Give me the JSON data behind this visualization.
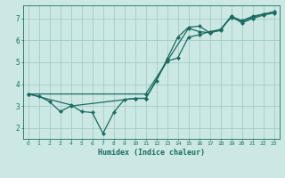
{
  "xlabel": "Humidex (Indice chaleur)",
  "bg_color": "#cce8e4",
  "grid_color": "#aacfcc",
  "line_color": "#1a6b60",
  "xlim": [
    -0.5,
    23.5
  ],
  "ylim": [
    1.5,
    7.6
  ],
  "xticks": [
    0,
    1,
    2,
    3,
    4,
    5,
    6,
    7,
    8,
    9,
    10,
    11,
    12,
    13,
    14,
    15,
    16,
    17,
    18,
    19,
    20,
    21,
    22,
    23
  ],
  "yticks": [
    2,
    3,
    4,
    5,
    6,
    7
  ],
  "line1_x": [
    0,
    1,
    2,
    3,
    4,
    10,
    11,
    12,
    13,
    14,
    15,
    16,
    17,
    18,
    19,
    20,
    21,
    22,
    23
  ],
  "line1_y": [
    3.55,
    3.45,
    3.2,
    2.75,
    3.0,
    3.35,
    3.35,
    4.15,
    5.15,
    6.15,
    6.6,
    6.65,
    6.35,
    6.45,
    7.1,
    6.8,
    7.0,
    7.15,
    7.25
  ],
  "line2_x": [
    0,
    4,
    5,
    6,
    7,
    8,
    9,
    10,
    11,
    13,
    14,
    15,
    16,
    17,
    18,
    19,
    20,
    21,
    22,
    23
  ],
  "line2_y": [
    3.55,
    3.05,
    2.75,
    2.7,
    1.75,
    2.7,
    3.3,
    3.35,
    3.35,
    5.05,
    5.2,
    6.15,
    6.25,
    6.4,
    6.5,
    7.05,
    6.85,
    7.05,
    7.2,
    7.3
  ],
  "line3_x": [
    0,
    11,
    15,
    16,
    17,
    18,
    19,
    20,
    21,
    22,
    23
  ],
  "line3_y": [
    3.55,
    3.55,
    6.55,
    6.4,
    6.35,
    6.5,
    7.1,
    6.9,
    7.1,
    7.2,
    7.3
  ]
}
